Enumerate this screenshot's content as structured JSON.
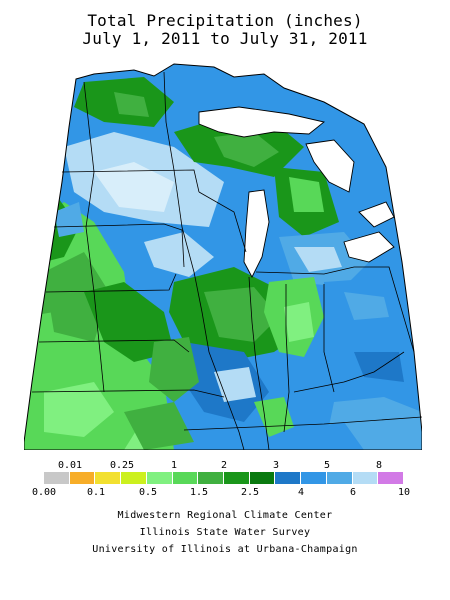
{
  "title": {
    "line1": "Total Precipitation (inches)",
    "line2": "July 1, 2011 to July 31, 2011"
  },
  "legend": {
    "top_labels": [
      "0.01",
      "0.25",
      "1",
      "2",
      "3",
      "5",
      "8"
    ],
    "bottom_labels": [
      "0.00",
      "0.1",
      "0.5",
      "1.5",
      "2.5",
      "4",
      "6",
      "10"
    ],
    "colors": [
      "#c8c8c8",
      "#f7ad28",
      "#f2e030",
      "#ccf01e",
      "#80f080",
      "#58d858",
      "#40b040",
      "#1a961a",
      "#0a7a10",
      "#1e78c8",
      "#3296e6",
      "#50aae6",
      "#b4dcf5",
      "#d27ae6"
    ]
  },
  "credits": {
    "line1": "Midwestern Regional Climate Center",
    "line2": "Illinois State Water Survey",
    "line3": "University of Illinois at Urbana-Champaign"
  },
  "map": {
    "region": "Midwest US",
    "features": [
      "state boundaries",
      "Great Lakes",
      "precipitation shading"
    ]
  }
}
